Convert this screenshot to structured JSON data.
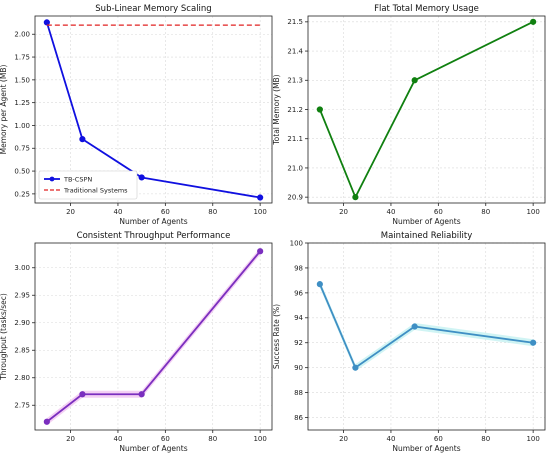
{
  "chart_data": [
    {
      "type": "line",
      "title": "Sub-Linear Memory Scaling",
      "xlabel": "Number of Agents",
      "ylabel": "Memory per Agent (MB)",
      "xlim": [
        5,
        105
      ],
      "ylim": [
        0.15,
        2.2
      ],
      "xticks": [
        20,
        40,
        60,
        80,
        100
      ],
      "yticks": [
        0.25,
        0.5,
        0.75,
        1.0,
        1.25,
        1.5,
        1.75,
        2.0
      ],
      "ytick_labels": [
        "0.25",
        "0.50",
        "0.75",
        "1.00",
        "1.25",
        "1.50",
        "1.75",
        "2.00"
      ],
      "grid": true,
      "legend": "lower-left",
      "series": [
        {
          "name": "TB-CSPN",
          "x": [
            10,
            25,
            50,
            100
          ],
          "y": [
            2.13,
            0.85,
            0.43,
            0.21
          ],
          "color": "#1010e0",
          "style": "solid",
          "marker": true,
          "band": false
        },
        {
          "name": "Traditional Systems",
          "x": [
            10,
            100
          ],
          "y": [
            2.1,
            2.1
          ],
          "color": "#e02020",
          "style": "dashed",
          "marker": false,
          "band": false
        }
      ]
    },
    {
      "type": "line",
      "title": "Flat Total Memory Usage",
      "xlabel": "Number of Agents",
      "ylabel": "Total Memory (MB)",
      "xlim": [
        5,
        105
      ],
      "ylim": [
        20.88,
        21.52
      ],
      "xticks": [
        20,
        40,
        60,
        80,
        100
      ],
      "yticks": [
        20.9,
        21.0,
        21.1,
        21.2,
        21.3,
        21.4,
        21.5
      ],
      "ytick_labels": [
        "20.9",
        "21.0",
        "21.1",
        "21.2",
        "21.3",
        "21.4",
        "21.5"
      ],
      "grid": true,
      "series": [
        {
          "x": [
            10,
            25,
            50,
            100
          ],
          "y": [
            21.2,
            20.9,
            21.3,
            21.5
          ],
          "color": "#108010",
          "style": "solid",
          "marker": true,
          "band": false
        }
      ]
    },
    {
      "type": "line",
      "title": "Consistent Throughput Performance",
      "xlabel": "Number of Agents",
      "ylabel": "Throughput (tasks/sec)",
      "xlim": [
        5,
        105
      ],
      "ylim": [
        2.705,
        3.045
      ],
      "xticks": [
        20,
        40,
        60,
        80,
        100
      ],
      "yticks": [
        2.75,
        2.8,
        2.85,
        2.9,
        2.95,
        3.0
      ],
      "ytick_labels": [
        "2.75",
        "2.80",
        "2.85",
        "2.90",
        "2.95",
        "3.00"
      ],
      "grid": true,
      "series": [
        {
          "x": [
            10,
            25,
            50,
            100
          ],
          "y": [
            2.72,
            2.77,
            2.77,
            3.03
          ],
          "color": "#7b2fbf",
          "style": "solid",
          "marker": true,
          "band": true,
          "band_color": "#f2c8f2"
        }
      ]
    },
    {
      "type": "line",
      "title": "Maintained Reliability",
      "xlabel": "Number of Agents",
      "ylabel": "Success Rate (%)",
      "xlim": [
        5,
        105
      ],
      "ylim": [
        85,
        100
      ],
      "xticks": [
        20,
        40,
        60,
        80,
        100
      ],
      "yticks": [
        86,
        88,
        90,
        92,
        94,
        96,
        98,
        100
      ],
      "ytick_labels": [
        "86",
        "88",
        "90",
        "92",
        "94",
        "96",
        "98",
        "100"
      ],
      "grid": true,
      "series": [
        {
          "x": [
            10,
            25,
            50,
            100
          ],
          "y": [
            96.7,
            90.0,
            93.3,
            92.0
          ],
          "color": "#3f8fc4",
          "style": "solid",
          "marker": true,
          "band": true,
          "band_color": "#c8f2f2"
        }
      ]
    }
  ]
}
